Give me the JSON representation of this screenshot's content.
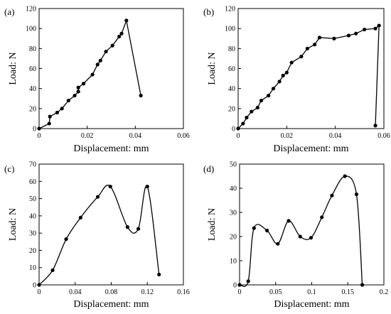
{
  "chart_data": [
    {
      "panel_label": "(a)",
      "type": "line",
      "xlabel": "Displacement: mm",
      "ylabel": "Load: N",
      "xlim": [
        0,
        0.06
      ],
      "ylim": [
        0,
        120
      ],
      "xticks": [
        "0",
        "0.02",
        "0.04",
        "0.06"
      ],
      "yticks": [
        "0",
        "20",
        "40",
        "60",
        "80",
        "100",
        "120"
      ],
      "smooth": false,
      "grid": false,
      "points": [
        [
          0.0,
          0.0
        ],
        [
          0.0042,
          5.0
        ],
        [
          0.0045,
          12.0
        ],
        [
          0.0075,
          16.0
        ],
        [
          0.0095,
          20.0
        ],
        [
          0.0122,
          28.0
        ],
        [
          0.0148,
          33.0
        ],
        [
          0.0163,
          37.0
        ],
        [
          0.0163,
          41.0
        ],
        [
          0.0185,
          45.0
        ],
        [
          0.0222,
          54.0
        ],
        [
          0.0243,
          64.0
        ],
        [
          0.0255,
          68.0
        ],
        [
          0.0278,
          77.0
        ],
        [
          0.0305,
          83.0
        ],
        [
          0.0333,
          92.0
        ],
        [
          0.0343,
          95.0
        ],
        [
          0.0363,
          108.0
        ],
        [
          0.0423,
          33.0
        ]
      ]
    },
    {
      "panel_label": "(b)",
      "type": "line",
      "xlabel": "Displacement: mm",
      "ylabel": "Load: N",
      "xlim": [
        0,
        0.06
      ],
      "ylim": [
        0,
        120
      ],
      "xticks": [
        "0",
        "0.02",
        "0.04",
        "0.06"
      ],
      "yticks": [
        "0",
        "20",
        "40",
        "60",
        "80",
        "100",
        "120"
      ],
      "smooth": false,
      "grid": false,
      "points": [
        [
          0.0,
          0.0
        ],
        [
          0.002,
          5.0
        ],
        [
          0.0035,
          11.0
        ],
        [
          0.0055,
          17.0
        ],
        [
          0.008,
          21.0
        ],
        [
          0.0095,
          28.0
        ],
        [
          0.0125,
          33.0
        ],
        [
          0.0145,
          40.0
        ],
        [
          0.017,
          47.0
        ],
        [
          0.0185,
          53.0
        ],
        [
          0.02,
          56.0
        ],
        [
          0.022,
          66.0
        ],
        [
          0.026,
          72.0
        ],
        [
          0.0285,
          80.0
        ],
        [
          0.0315,
          84.0
        ],
        [
          0.0335,
          91.0
        ],
        [
          0.0395,
          90.0
        ],
        [
          0.0455,
          93.0
        ],
        [
          0.0485,
          95.0
        ],
        [
          0.052,
          99.0
        ],
        [
          0.0565,
          100.0
        ],
        [
          0.058,
          103.0
        ],
        [
          0.0565,
          3.0
        ]
      ]
    },
    {
      "panel_label": "(c)",
      "type": "line",
      "xlabel": "Displacement: mm",
      "ylabel": "Load: N",
      "xlim": [
        0,
        0.16
      ],
      "ylim": [
        0,
        70
      ],
      "xticks": [
        "0",
        "0.04",
        "0.08",
        "0.12",
        "0.16"
      ],
      "yticks": [
        "0",
        "10",
        "20",
        "30",
        "40",
        "50",
        "60",
        "70"
      ],
      "smooth": true,
      "grid": false,
      "points": [
        [
          0.0,
          0.0
        ],
        [
          0.015,
          8.5
        ],
        [
          0.03,
          26.5
        ],
        [
          0.046,
          39.0
        ],
        [
          0.065,
          51.0
        ],
        [
          0.079,
          57.0
        ],
        [
          0.098,
          33.5
        ],
        [
          0.11,
          32.5
        ],
        [
          0.12,
          57.0
        ],
        [
          0.133,
          6.0
        ]
      ]
    },
    {
      "panel_label": "(d)",
      "type": "line",
      "xlabel": "Displacement: mm",
      "ylabel": "Load: N",
      "xlim": [
        0,
        0.2
      ],
      "ylim": [
        0,
        50
      ],
      "xticks": [
        "0",
        "0.05",
        "0.1",
        "0.15",
        "0.2"
      ],
      "yticks": [
        "0",
        "10",
        "20",
        "30",
        "40",
        "50"
      ],
      "smooth": true,
      "grid": false,
      "points": [
        [
          0.0,
          0.0
        ],
        [
          0.012,
          1.5
        ],
        [
          0.02,
          23.5
        ],
        [
          0.038,
          22.5
        ],
        [
          0.053,
          17.0
        ],
        [
          0.068,
          26.5
        ],
        [
          0.084,
          20.0
        ],
        [
          0.099,
          19.5
        ],
        [
          0.114,
          28.0
        ],
        [
          0.128,
          37.0
        ],
        [
          0.146,
          45.0
        ],
        [
          0.162,
          37.5
        ],
        [
          0.17,
          0.0
        ]
      ]
    }
  ]
}
